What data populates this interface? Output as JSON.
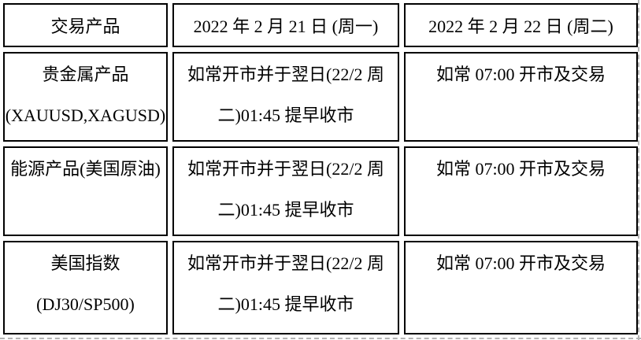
{
  "page": {
    "background_color": "#ffffff",
    "table_border_color": "#000000",
    "edge_dash_color": "#b4b4b4"
  },
  "table": {
    "headers": {
      "product": "交易产品",
      "monday": "2022 年 2 月 21 日 (周一)",
      "tuesday": "2022 年 2 月 22 日 (周二)"
    },
    "rows": [
      {
        "product_lines": [
          "贵金属产品",
          "(XAUUSD,XAGUSD)"
        ],
        "monday_lines": [
          "如常开市并于翌日(22/2 周",
          "二)01:45 提早收市"
        ],
        "tuesday_lines": [
          "如常 07:00 开市及交易"
        ]
      },
      {
        "product_lines": [
          "能源产品(美国原油)"
        ],
        "monday_lines": [
          "如常开市并于翌日(22/2 周",
          "二)01:45 提早收市"
        ],
        "tuesday_lines": [
          "如常 07:00 开市及交易"
        ]
      },
      {
        "product_lines": [
          "美国指数",
          "(DJ30/SP500)"
        ],
        "monday_lines": [
          "如常开市并于翌日(22/2 周",
          "二)01:45 提早收市"
        ],
        "tuesday_lines": [
          "如常 07:00 开市及交易"
        ]
      }
    ]
  }
}
